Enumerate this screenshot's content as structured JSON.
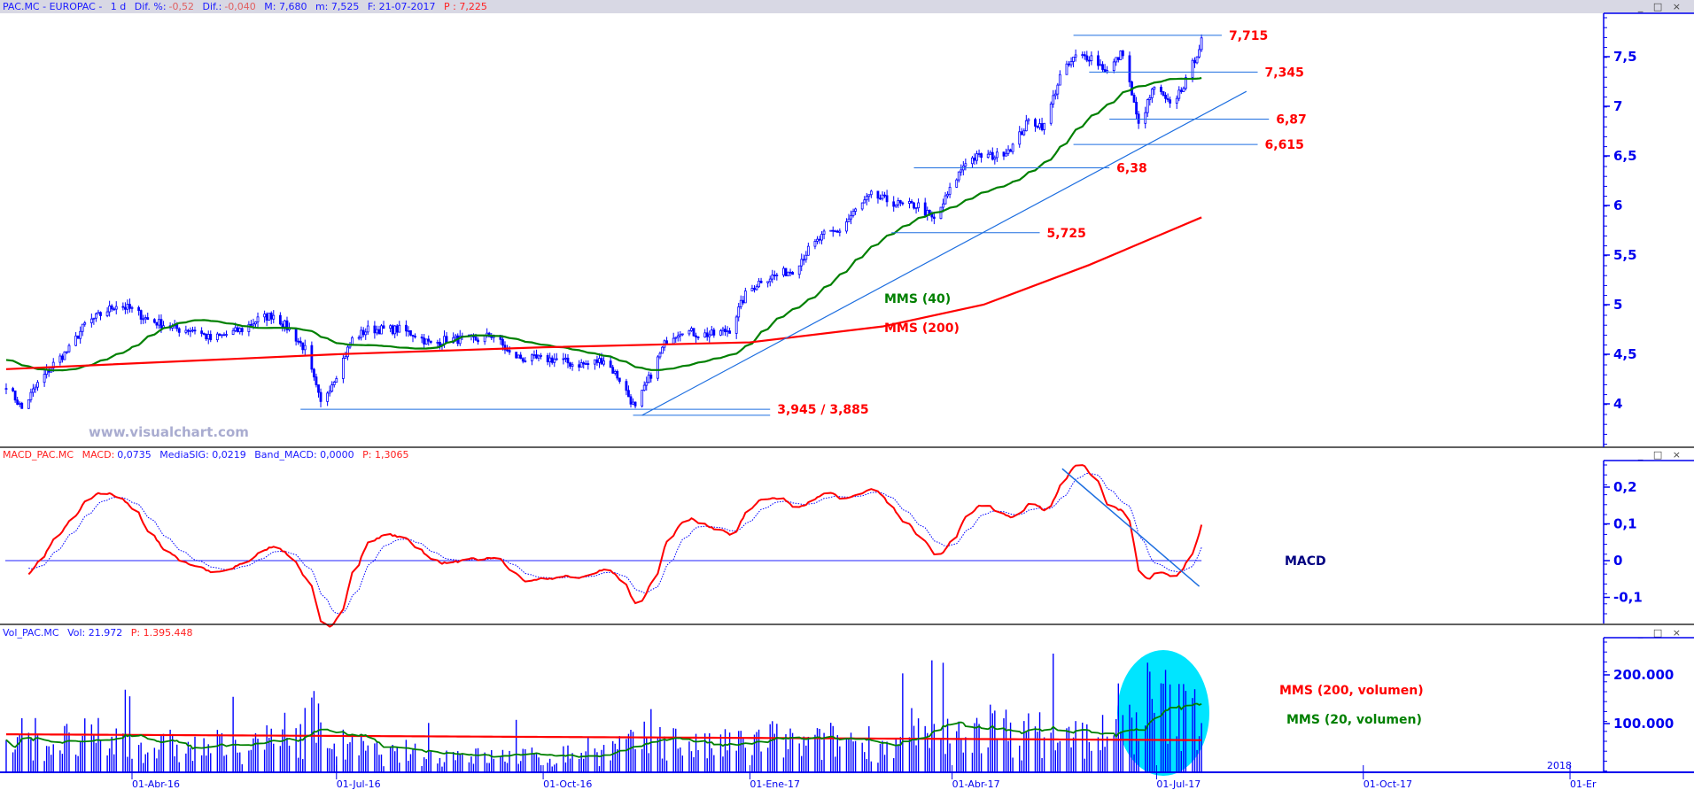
{
  "price_header": {
    "symbol": "PAC.MC - EUROPAC -",
    "period": "1 d",
    "dif_pct_label": "Dif. %:",
    "dif_pct": "-0,52",
    "dif_label": "Dif.:",
    "dif": "-0,040",
    "max": "M: 7,680",
    "min": "m: 7,525",
    "date": "F: 21-07-2017",
    "p": "P : 7,225"
  },
  "macd_header": {
    "name": "MACD_PAC.MC",
    "macd_label": "MACD:",
    "macd": "0,0735",
    "sig": "MediaSIG: 0,0219",
    "band": "Band_MACD: 0,0000",
    "p": "P: 1,3065"
  },
  "vol_header": {
    "name": "Vol_PAC.MC",
    "vol": "Vol: 21.972",
    "p": "P: 1.395.448"
  },
  "window_buttons": "_ □ ×",
  "watermark": "www.visualchart.com",
  "colors": {
    "price": "#0000ff",
    "ma40": "#008000",
    "ma200": "#ff0000",
    "annotation": "#ff0000",
    "trendline": "#1e6fe0",
    "highlight": "#00e5ff",
    "axis": "#0000ee"
  },
  "chart_data": [
    {
      "type": "candlestick",
      "title": "PAC.MC - EUROPAC",
      "x_start": "2016-02-05",
      "x_step": "1 week",
      "weekly_close": [
        4.2,
        3.95,
        4.2,
        4.4,
        4.55,
        4.8,
        4.9,
        5.0,
        4.95,
        4.85,
        4.8,
        4.75,
        4.75,
        4.65,
        4.7,
        4.75,
        4.85,
        4.9,
        4.75,
        4.55,
        4.0,
        4.3,
        4.65,
        4.75,
        4.75,
        4.75,
        4.7,
        4.6,
        4.65,
        4.65,
        4.65,
        4.7,
        4.5,
        4.45,
        4.45,
        4.45,
        4.4,
        4.4,
        4.45,
        4.25,
        3.95,
        4.3,
        4.65,
        4.75,
        4.7,
        4.7,
        4.75,
        5.1,
        5.25,
        5.3,
        5.35,
        5.55,
        5.7,
        5.75,
        5.95,
        6.1,
        6.05,
        6.0,
        6.0,
        5.85,
        6.15,
        6.45,
        6.5,
        6.5,
        6.6,
        6.85,
        6.8,
        7.3,
        7.5,
        7.5,
        7.35,
        7.55,
        6.8,
        7.2,
        7.0,
        7.25,
        7.65
      ],
      "ma200": {
        "label": "MMS (200)",
        "points": [
          [
            "2016-02-05",
            4.35
          ],
          [
            "2016-07-01",
            4.5
          ],
          [
            "2016-10-01",
            4.57
          ],
          [
            "2017-01-01",
            4.62
          ],
          [
            "2017-03-01",
            4.78
          ],
          [
            "2017-04-15",
            5.0
          ],
          [
            "2017-06-01",
            5.4
          ],
          [
            "2017-07-21",
            5.88
          ]
        ]
      },
      "ma40": {
        "label": "MMS (40)",
        "period": 40
      },
      "yticks": [
        "4",
        "4,5",
        "5",
        "5,5",
        "6",
        "6,5",
        "7",
        "7,5"
      ],
      "ylim": [
        3.55,
        7.85
      ],
      "levels": [
        {
          "value": 7.715,
          "label": "7,715",
          "from": "2017-05-25",
          "to": "2017-07-30"
        },
        {
          "value": 7.345,
          "label": "7,345",
          "from": "2017-06-01",
          "to": "2017-08-15"
        },
        {
          "value": 6.87,
          "label": "6,87",
          "from": "2017-06-10",
          "to": "2017-08-20"
        },
        {
          "value": 6.615,
          "label": "6,615",
          "from": "2017-05-25",
          "to": "2017-08-15"
        },
        {
          "value": 6.38,
          "label": "6,38",
          "from": "2017-03-15",
          "to": "2017-06-10"
        },
        {
          "value": 5.725,
          "label": "5,725",
          "from": "2017-03-05",
          "to": "2017-05-10"
        },
        {
          "value": 3.945,
          "label": "3,945 / 3,885",
          "from": "2016-06-15",
          "to": "2017-01-10"
        },
        {
          "value": 3.885,
          "label": "",
          "from": "2016-11-10",
          "to": "2017-01-10"
        }
      ],
      "trendline": [
        [
          "2016-11-14",
          3.885
        ],
        [
          "2017-08-10",
          7.15
        ]
      ]
    },
    {
      "type": "line",
      "title": "MACD",
      "label": "MACD",
      "series": [
        {
          "name": "MACD"
        },
        {
          "name": "MediaSIG"
        }
      ],
      "yticks": [
        "-0,1",
        "0",
        "0,1",
        "0,2"
      ],
      "ylim": [
        -0.14,
        0.25
      ],
      "trendline": [
        [
          "2017-05-20",
          0.25
        ],
        [
          "2017-07-20",
          -0.07
        ]
      ]
    },
    {
      "type": "bar",
      "title": "Vol_PAC.MC",
      "weekly_volume": [
        60000,
        80000,
        65000,
        70000,
        60000,
        75000,
        65000,
        70000,
        60000,
        55000,
        60000,
        50000,
        55000,
        60000,
        50000,
        55000,
        60000,
        70000,
        90000,
        110000,
        75000,
        60000,
        55000,
        45000,
        40000,
        45000,
        40000,
        35000,
        40000,
        40000,
        35000,
        35000,
        40000,
        35000,
        30000,
        40000,
        45000,
        40000,
        50000,
        60000,
        70000,
        80000,
        70000,
        60000,
        55000,
        60000,
        65000,
        70000,
        75000,
        70000,
        60000,
        65000,
        70000,
        75000,
        70000,
        65000,
        60000,
        70000,
        75000,
        80000,
        85000,
        95000,
        100000,
        90000,
        80000,
        85000,
        90000,
        75000,
        80000,
        85000,
        80000,
        110000,
        160000,
        150000,
        130000,
        140000,
        110000
      ],
      "ma200_label": "MMS (200, volumen)",
      "ma20_label": "MMS (20, volumen)",
      "yticks": [
        "100.000",
        "200.000"
      ],
      "ylim": [
        0,
        280000
      ]
    }
  ],
  "x_axis": {
    "ticks": [
      [
        "2016-04-01",
        "01-Abr-16"
      ],
      [
        "2016-07-01",
        "01-Jul-16"
      ],
      [
        "2016-10-01",
        "01-Oct-16"
      ],
      [
        "2017-01-01",
        "01-Ene-17"
      ],
      [
        "2017-04-01",
        "01-Abr-17"
      ],
      [
        "2017-07-01",
        "01-Jul-17"
      ],
      [
        "2017-10-01",
        "01-Oct-17"
      ],
      [
        "2018-01-01",
        "01-Er"
      ]
    ],
    "year_marker": "2018"
  }
}
